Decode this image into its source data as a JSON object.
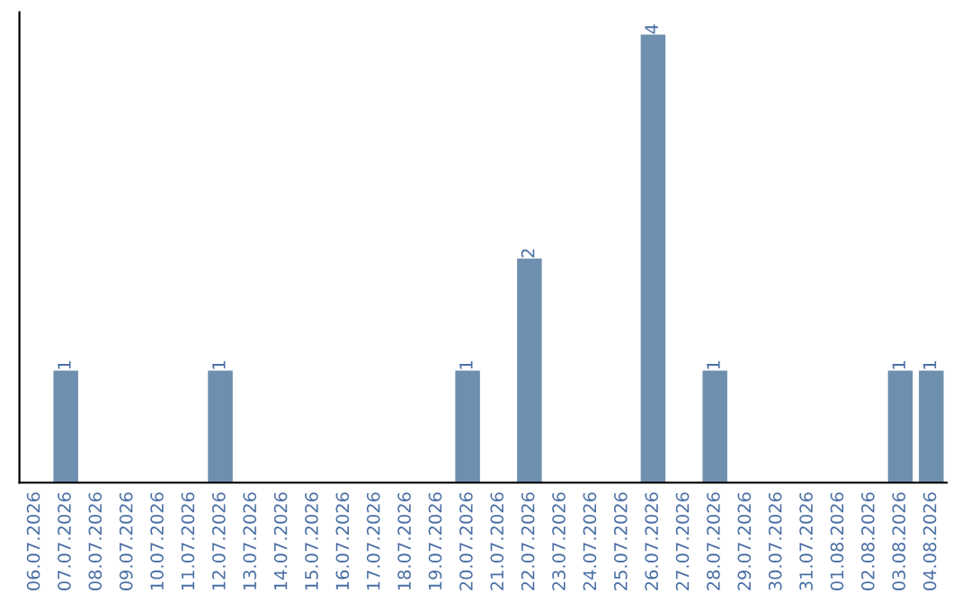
{
  "chart_data": {
    "type": "bar",
    "categories": [
      "06.07.2026",
      "07.07.2026",
      "08.07.2026",
      "09.07.2026",
      "10.07.2026",
      "11.07.2026",
      "12.07.2026",
      "13.07.2026",
      "14.07.2026",
      "15.07.2026",
      "16.07.2026",
      "17.07.2026",
      "18.07.2026",
      "19.07.2026",
      "20.07.2026",
      "21.07.2026",
      "22.07.2026",
      "23.07.2026",
      "24.07.2026",
      "25.07.2026",
      "26.07.2026",
      "27.07.2026",
      "28.07.2026",
      "29.07.2026",
      "30.07.2026",
      "31.07.2026",
      "01.08.2026",
      "02.08.2026",
      "03.08.2026",
      "04.08.2026"
    ],
    "values": [
      0,
      1,
      0,
      0,
      0,
      0,
      1,
      0,
      0,
      0,
      0,
      0,
      0,
      0,
      1,
      0,
      2,
      0,
      0,
      0,
      4,
      0,
      1,
      0,
      0,
      0,
      0,
      0,
      1,
      1
    ],
    "value_labels": [
      null,
      "1",
      null,
      null,
      null,
      null,
      "1",
      null,
      null,
      null,
      null,
      null,
      null,
      null,
      "1",
      null,
      "2",
      null,
      null,
      null,
      "4",
      null,
      "1",
      null,
      null,
      null,
      null,
      null,
      "1",
      "1"
    ],
    "color": "#6e8fae",
    "tick_labels": "x",
    "grid": false
  }
}
